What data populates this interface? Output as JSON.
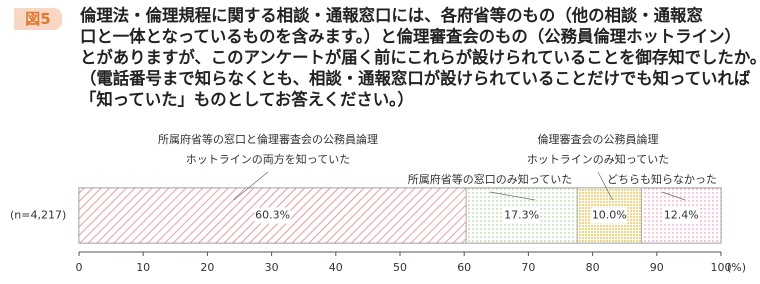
{
  "chart_data": {
    "type": "stacked-bar-horizontal",
    "figure_label": "図5",
    "title": "倫理法・倫理規程に関する相談・通報窓口には、各府省等のもの（他の相談・通報窓\n口と一体となっているものを含みます。）と倫理審査会のもの（公務員倫理ホットライン）\nとがありますが、このアンケートが届く前にこれらが設けられていることを御存知でしたか。\n（電話番号まで知らなくとも、相談・通報窓口が設けられていることだけでも知っていれば\n「知っていた」ものとしてお答えください。）",
    "categories": [
      "(n=4,217)"
    ],
    "series": [
      {
        "name": "所属府省等の窓口と倫理審査会の公務員論理\nホットラインの両方を知っていた",
        "color": "#e8707c",
        "values": [
          60.3
        ],
        "value_labels": [
          "60.3%"
        ]
      },
      {
        "name": "所属府省等の窓口のみ知っていた",
        "color": "#8cc870",
        "values": [
          17.3
        ],
        "value_labels": [
          "17.3%"
        ]
      },
      {
        "name": "倫理審査会の公務員論理\nホットラインのみ知っていた",
        "color": "#f0b828",
        "values": [
          10.0
        ],
        "value_labels": [
          "10.0%"
        ]
      },
      {
        "name": "どちらも知らなかった",
        "color": "#e878b0",
        "values": [
          12.4
        ],
        "value_labels": [
          "12.4%"
        ]
      }
    ],
    "xlim": [
      0,
      100
    ],
    "xticks": [
      0,
      10,
      20,
      30,
      40,
      50,
      60,
      70,
      80,
      90,
      100
    ],
    "x_unit_label": "(%)"
  }
}
